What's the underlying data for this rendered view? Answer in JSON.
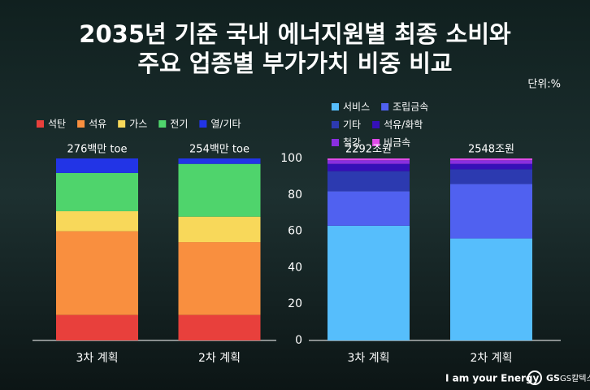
{
  "header": {
    "title": [
      "2035년 기준 국내 에너지원별 최종 소비와",
      "주요 업종별 부가가치 비중 비교"
    ],
    "unit": "단위:%"
  },
  "chart_data": [
    {
      "type": "bar",
      "stacked": true,
      "categories": [
        "3차 계획",
        "2차 계획"
      ],
      "annotations": [
        "276백만 toe",
        "254백만 toe"
      ],
      "ylim": [
        0,
        100
      ],
      "series": [
        {
          "name": "석탄",
          "color": "#e8403c",
          "values": [
            14,
            14
          ]
        },
        {
          "name": "석유",
          "color": "#f98f3f",
          "values": [
            46,
            40
          ]
        },
        {
          "name": "가스",
          "color": "#f8d85a",
          "values": [
            11,
            14
          ]
        },
        {
          "name": "전기",
          "color": "#4fd46c",
          "values": [
            21,
            29
          ]
        },
        {
          "name": "열/기타",
          "color": "#2234e6",
          "values": [
            8,
            3
          ]
        }
      ]
    },
    {
      "type": "bar",
      "stacked": true,
      "categories": [
        "3차 계획",
        "2차 계획"
      ],
      "annotations": [
        "2292조원",
        "2548조원"
      ],
      "ylim": [
        0,
        100
      ],
      "yticks": [
        0,
        20,
        40,
        60,
        80,
        100
      ],
      "series": [
        {
          "name": "서비스",
          "color": "#56befc",
          "values": [
            63,
            56
          ]
        },
        {
          "name": "조립금속",
          "color": "#5061f0",
          "values": [
            19,
            30
          ]
        },
        {
          "name": "기타",
          "color": "#2c3ab0",
          "values": [
            11,
            8
          ]
        },
        {
          "name": "석유/화학",
          "color": "#3510b8",
          "values": [
            4,
            3
          ]
        },
        {
          "name": "철강",
          "color": "#8a2ee0",
          "values": [
            2,
            2
          ]
        },
        {
          "name": "비금속",
          "color": "#e04be8",
          "values": [
            1,
            1
          ]
        }
      ]
    }
  ],
  "footer": {
    "slogan": "I am your Energy",
    "brand": "GS칼텍스",
    "logo": "GS"
  }
}
